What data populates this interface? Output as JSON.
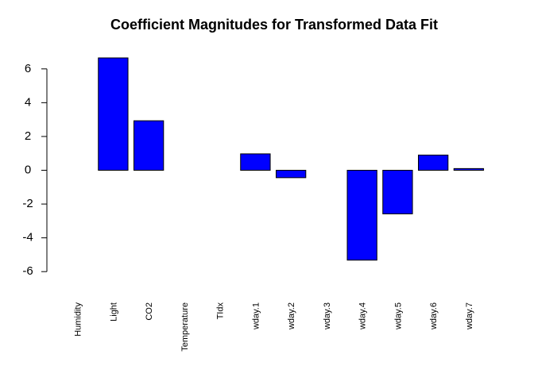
{
  "chart_data": {
    "type": "bar",
    "title": "Coefficient Magnitudes for Transformed Data Fit",
    "xlabel": "",
    "ylabel": "",
    "categories": [
      "Humidity",
      "Light",
      "CO2",
      "Temperature",
      "TIdx",
      "wday.1",
      "wday.2",
      "wday.3",
      "wday.4",
      "wday.5",
      "wday.6",
      "wday.7"
    ],
    "values": [
      0.0,
      6.65,
      2.93,
      0.0,
      0.0,
      0.97,
      -0.44,
      0.0,
      -5.32,
      -2.58,
      0.9,
      0.1
    ],
    "yticks": [
      -6,
      -4,
      -2,
      0,
      2,
      4,
      6
    ],
    "ylim": [
      -7.4,
      7.4
    ],
    "bar_color": "#0000ff",
    "grid": false,
    "legend": "none"
  }
}
